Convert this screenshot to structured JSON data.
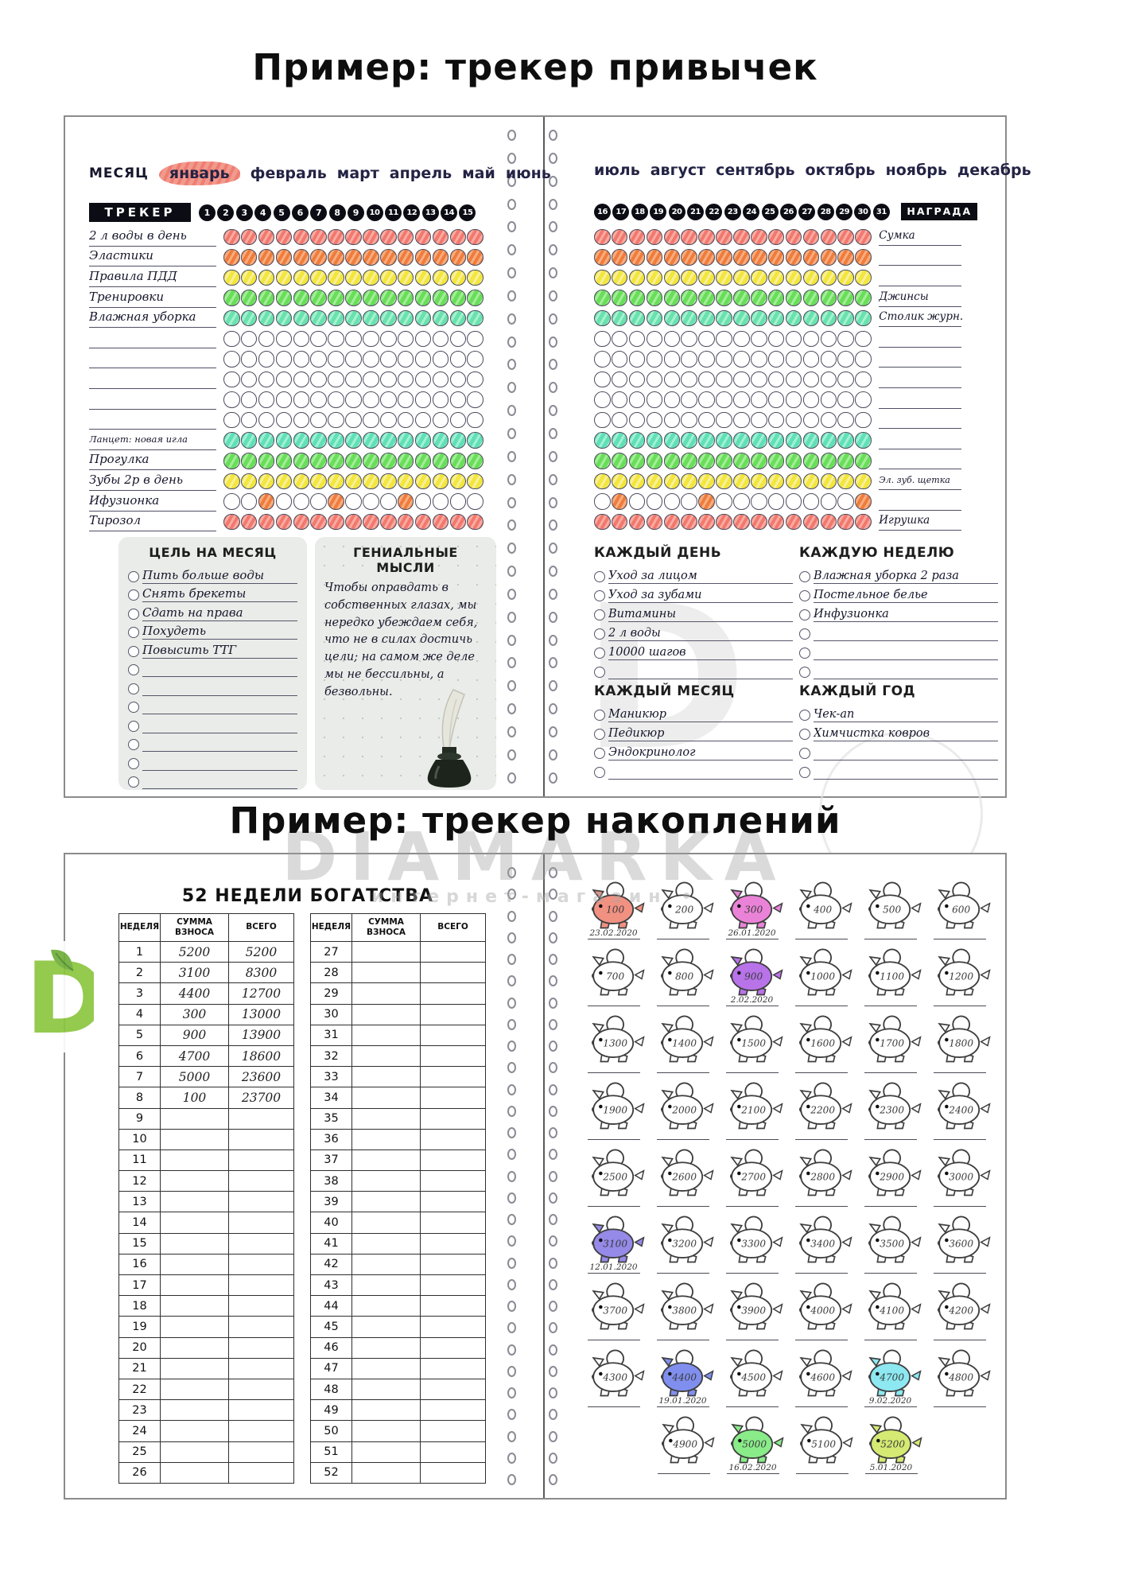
{
  "section1": {
    "title": "Пример: трекер привычек",
    "left": {
      "month_label": "МЕСЯЦ",
      "months": [
        "январь",
        "февраль",
        "март",
        "апрель",
        "май",
        "июнь"
      ],
      "highlighted_month": "январь",
      "tracker_label": "ТРЕКЕР",
      "days": [
        1,
        2,
        3,
        4,
        5,
        6,
        7,
        8,
        9,
        10,
        11,
        12,
        13,
        14,
        15
      ],
      "rows": [
        {
          "label": "2 л воды в день",
          "color": "red",
          "filled": "all"
        },
        {
          "label": "Эластики",
          "color": "orange",
          "filled": "all"
        },
        {
          "label": "Правила ПДД",
          "color": "yellow",
          "filled": "all"
        },
        {
          "label": "Тренировки",
          "color": "green",
          "filled": "all"
        },
        {
          "label": "Влажная уборка",
          "color": "mint",
          "filled": "all"
        },
        {
          "label": "",
          "color": "",
          "filled": "none"
        },
        {
          "label": "",
          "color": "",
          "filled": "none"
        },
        {
          "label": "",
          "color": "",
          "filled": "none"
        },
        {
          "label": "",
          "color": "",
          "filled": "none"
        },
        {
          "label": "",
          "color": "",
          "filled": "none"
        },
        {
          "label": "Ланцет: новая игла",
          "color": "teal",
          "filled": "all",
          "small": true
        },
        {
          "label": "Прогулка",
          "color": "green",
          "filled": "all"
        },
        {
          "label": "Зубы 2р в день",
          "color": "yellow",
          "filled": "all"
        },
        {
          "label": "Ифузионка",
          "color": "orange",
          "filled": [
            3,
            7,
            11
          ]
        },
        {
          "label": "Тирозол",
          "color": "red",
          "filled": "all"
        }
      ],
      "goals": {
        "title": "ЦЕЛЬ НА МЕСЯЦ",
        "items": [
          "Пить больше воды",
          "Снять брекеты",
          "Сдать на права",
          "Похудеть",
          "Повысить ТТГ",
          "",
          "",
          "",
          "",
          "",
          "",
          ""
        ]
      },
      "thoughts": {
        "title": "ГЕНИАЛЬНЫЕ МЫСЛИ",
        "text": "Чтобы оправдать в собственных глазах, мы нередко убеждаем себя, что не в силах достичь цели; на самом же деле мы не бессильны, а безвольны."
      }
    },
    "right": {
      "months": [
        "июль",
        "август",
        "сентябрь",
        "октябрь",
        "ноябрь",
        "декабрь"
      ],
      "days": [
        16,
        17,
        18,
        19,
        20,
        21,
        22,
        23,
        24,
        25,
        26,
        27,
        28,
        29,
        30,
        31
      ],
      "reward_label": "НАГРАДА",
      "rows": [
        {
          "color": "red",
          "filled": "all",
          "reward": "Сумка"
        },
        {
          "color": "orange",
          "filled": "all",
          "reward": ""
        },
        {
          "color": "yellow",
          "filled": "all",
          "reward": ""
        },
        {
          "color": "green",
          "filled": "all",
          "reward": "Джинсы"
        },
        {
          "color": "mint",
          "filled": "all",
          "reward": "Столик журн."
        },
        {
          "color": "",
          "filled": "none",
          "reward": ""
        },
        {
          "color": "",
          "filled": "none",
          "reward": ""
        },
        {
          "color": "",
          "filled": "none",
          "reward": ""
        },
        {
          "color": "",
          "filled": "none",
          "reward": ""
        },
        {
          "color": "",
          "filled": "none",
          "reward": ""
        },
        {
          "color": "teal",
          "filled": "all",
          "reward": ""
        },
        {
          "color": "green",
          "filled": "all",
          "reward": ""
        },
        {
          "color": "yellow",
          "filled": "all",
          "reward": "Эл. зуб. щетка",
          "small": true
        },
        {
          "color": "orange",
          "filled": [
            17,
            22,
            31
          ],
          "reward": ""
        },
        {
          "color": "red",
          "filled": "all",
          "reward": "Игрушка"
        }
      ],
      "every_day": {
        "title": "КАЖДЫЙ ДЕНЬ",
        "items": [
          "Уход за лицом",
          "Уход за зубами",
          "Витамины",
          "2 л воды",
          "10000 шагов",
          ""
        ]
      },
      "every_week": {
        "title": "КАЖДУЮ НЕДЕЛЮ",
        "items": [
          "Влажная уборка 2 раза",
          "Постельное белье",
          "Инфузионка",
          "",
          "",
          ""
        ]
      },
      "every_month": {
        "title": "КАЖДЫЙ МЕСЯЦ",
        "items": [
          "Маникюр",
          "Педикюр",
          "Эндокринолог",
          ""
        ]
      },
      "every_year": {
        "title": "КАЖДЫЙ ГОД",
        "items": [
          "Чек-ап",
          "Химчистка ковров",
          "",
          ""
        ]
      }
    }
  },
  "section2": {
    "title": "Пример: трекер накоплений",
    "table_title": "52 НЕДЕЛИ БОГАТСТВА",
    "headers": [
      "НЕДЕЛЯ",
      "СУММА ВЗНОСА",
      "ВСЕГО"
    ],
    "weeks1": [
      [
        "1",
        "5200",
        "5200"
      ],
      [
        "2",
        "3100",
        "8300"
      ],
      [
        "3",
        "4400",
        "12700"
      ],
      [
        "4",
        "300",
        "13000"
      ],
      [
        "5",
        "900",
        "13900"
      ],
      [
        "6",
        "4700",
        "18600"
      ],
      [
        "7",
        "5000",
        "23600"
      ],
      [
        "8",
        "100",
        "23700"
      ],
      [
        "9",
        "",
        ""
      ],
      [
        "10",
        "",
        ""
      ],
      [
        "11",
        "",
        ""
      ],
      [
        "12",
        "",
        ""
      ],
      [
        "13",
        "",
        ""
      ],
      [
        "14",
        "",
        ""
      ],
      [
        "15",
        "",
        ""
      ],
      [
        "16",
        "",
        ""
      ],
      [
        "17",
        "",
        ""
      ],
      [
        "18",
        "",
        ""
      ],
      [
        "19",
        "",
        ""
      ],
      [
        "20",
        "",
        ""
      ],
      [
        "21",
        "",
        ""
      ],
      [
        "22",
        "",
        ""
      ],
      [
        "23",
        "",
        ""
      ],
      [
        "24",
        "",
        ""
      ],
      [
        "25",
        "",
        ""
      ],
      [
        "26",
        "",
        ""
      ]
    ],
    "weeks2": [
      [
        "27",
        "",
        ""
      ],
      [
        "28",
        "",
        ""
      ],
      [
        "29",
        "",
        ""
      ],
      [
        "30",
        "",
        ""
      ],
      [
        "31",
        "",
        ""
      ],
      [
        "32",
        "",
        ""
      ],
      [
        "33",
        "",
        ""
      ],
      [
        "34",
        "",
        ""
      ],
      [
        "35",
        "",
        ""
      ],
      [
        "36",
        "",
        ""
      ],
      [
        "37",
        "",
        ""
      ],
      [
        "38",
        "",
        ""
      ],
      [
        "39",
        "",
        ""
      ],
      [
        "40",
        "",
        ""
      ],
      [
        "41",
        "",
        ""
      ],
      [
        "42",
        "",
        ""
      ],
      [
        "43",
        "",
        ""
      ],
      [
        "44",
        "",
        ""
      ],
      [
        "45",
        "",
        ""
      ],
      [
        "46",
        "",
        ""
      ],
      [
        "47",
        "",
        ""
      ],
      [
        "48",
        "",
        ""
      ],
      [
        "49",
        "",
        ""
      ],
      [
        "50",
        "",
        ""
      ],
      [
        "51",
        "",
        ""
      ],
      [
        "52",
        "",
        ""
      ]
    ],
    "pigs": [
      {
        "value": "100",
        "color": "salmon",
        "date": "23.02.2020"
      },
      {
        "value": "200"
      },
      {
        "value": "300",
        "color": "pink",
        "date": "26.01.2020"
      },
      {
        "value": "400"
      },
      {
        "value": "500"
      },
      {
        "value": "600"
      },
      {
        "value": "700"
      },
      {
        "value": "800"
      },
      {
        "value": "900",
        "color": "violet",
        "date": "2.02.2020"
      },
      {
        "value": "1000"
      },
      {
        "value": "1100"
      },
      {
        "value": "1200"
      },
      {
        "value": "1300"
      },
      {
        "value": "1400"
      },
      {
        "value": "1500"
      },
      {
        "value": "1600"
      },
      {
        "value": "1700"
      },
      {
        "value": "1800"
      },
      {
        "value": "1900"
      },
      {
        "value": "2000"
      },
      {
        "value": "2100"
      },
      {
        "value": "2200"
      },
      {
        "value": "2300"
      },
      {
        "value": "2400"
      },
      {
        "value": "2500"
      },
      {
        "value": "2600"
      },
      {
        "value": "2700"
      },
      {
        "value": "2800"
      },
      {
        "value": "2900"
      },
      {
        "value": "3000"
      },
      {
        "value": "3100",
        "color": "purple",
        "date": "12.01.2020"
      },
      {
        "value": "3200"
      },
      {
        "value": "3300"
      },
      {
        "value": "3400"
      },
      {
        "value": "3500"
      },
      {
        "value": "3600"
      },
      {
        "value": "3700"
      },
      {
        "value": "3800"
      },
      {
        "value": "3900"
      },
      {
        "value": "4000"
      },
      {
        "value": "4100"
      },
      {
        "value": "4200"
      },
      {
        "value": "4300"
      },
      {
        "value": "4400",
        "color": "blue",
        "date": "19.01.2020"
      },
      {
        "value": "4500"
      },
      {
        "value": "4600"
      },
      {
        "value": "4700",
        "color": "cyan",
        "date": "9.02.2020"
      },
      {
        "value": "4800"
      },
      {
        "value": "4900"
      },
      {
        "value": "5000",
        "color": "green",
        "date": "16.02.2020"
      },
      {
        "value": "5100"
      },
      {
        "value": "5200",
        "color": "yellowgreen",
        "date": "5.01.2020"
      }
    ]
  },
  "watermark": {
    "brand": "DIAMARKA",
    "sub": "интернет-магазин •"
  }
}
